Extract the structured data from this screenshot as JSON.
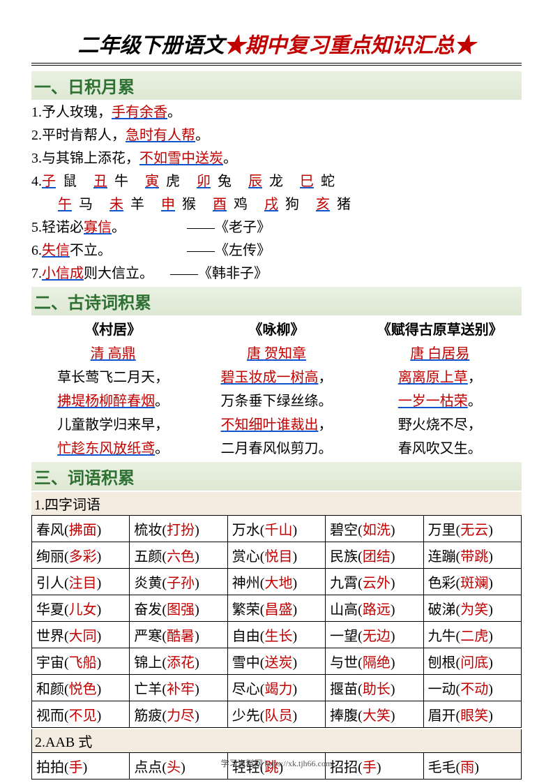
{
  "title": {
    "part1": "二年级下册语文",
    "star": "★",
    "part2": "期中复习重点知识汇总"
  },
  "section1": {
    "header": "一、日积月累",
    "items": {
      "1": {
        "pre": "1.予人玫瑰，",
        "hl": "手有余香",
        "post": "。"
      },
      "2": {
        "pre": "2.平时肯帮人，",
        "hl": "急时有人帮",
        "post": "。"
      },
      "3": {
        "pre": "3.与其锦上添花，",
        "hl": "不如雪中送炭",
        "post": "。"
      },
      "4": {
        "pre": "4.",
        "row1": [
          {
            "k": "子",
            "v": "鼠"
          },
          {
            "k": "丑",
            "v": "牛"
          },
          {
            "k": "寅",
            "v": "虎"
          },
          {
            "k": "卯",
            "v": "兔"
          },
          {
            "k": "辰",
            "v": "龙"
          },
          {
            "k": "巳",
            "v": "蛇"
          }
        ],
        "row2": [
          {
            "k": "午",
            "v": "马"
          },
          {
            "k": "未",
            "v": "羊"
          },
          {
            "k": "申",
            "v": "猴"
          },
          {
            "k": "酉",
            "v": "鸡"
          },
          {
            "k": "戌",
            "v": "狗"
          },
          {
            "k": "亥",
            "v": "猪"
          }
        ]
      },
      "5": {
        "pre": "5.轻诺必",
        "hl": "寡信",
        "post": "。",
        "src": "——《老子》"
      },
      "6": {
        "pre": "6.",
        "hl": "失信",
        "post": "不立。",
        "src": "——《左传》"
      },
      "7": {
        "pre": "7.",
        "hl": "小信成",
        "post": "则大信立。",
        "src": "——《韩非子》"
      }
    }
  },
  "section2": {
    "header": "二、古诗词积累",
    "poems": [
      {
        "title": "《村居》",
        "author": "清 高鼎",
        "lines": [
          {
            "t": "草长莺飞二月天，",
            "r": false
          },
          {
            "t": "拂堤杨柳醉春烟",
            "r": true,
            "p": "。"
          },
          {
            "t": "儿童散学归来早，",
            "r": false
          },
          {
            "t": "忙趁东风放纸鸢",
            "r": true,
            "p": "。"
          }
        ]
      },
      {
        "title": "《咏柳》",
        "author": "唐 贺知章",
        "lines": [
          {
            "t": "碧玉妆成一树高",
            "r": true,
            "p": "，"
          },
          {
            "t": "万条垂下绿丝绦。",
            "r": false
          },
          {
            "t": "不知细叶谁裁出",
            "r": true,
            "p": "，"
          },
          {
            "t": "二月春风似剪刀。",
            "r": false
          }
        ]
      },
      {
        "title": "《赋得古原草送别》",
        "author": "唐 白居易",
        "lines": [
          {
            "t": "离离原上草",
            "r": true,
            "p": "，"
          },
          {
            "t": "一岁一枯荣",
            "r": true,
            "p": "。"
          },
          {
            "t": "野火烧不尽，",
            "r": false
          },
          {
            "t": "春风吹又生。",
            "r": false
          }
        ]
      }
    ]
  },
  "section3": {
    "header": "三、词语积累",
    "sub1": "1.四字词语",
    "table1": [
      [
        {
          "a": "春风(",
          "b": "拂面",
          "c": ")"
        },
        {
          "a": "梳妆(",
          "b": "打扮",
          "c": ")"
        },
        {
          "a": "万水(",
          "b": "千山",
          "c": ")"
        },
        {
          "a": "碧空(",
          "b": "如洗",
          "c": ")"
        },
        {
          "a": "万里(",
          "b": "无云",
          "c": ")"
        }
      ],
      [
        {
          "a": "绚丽(",
          "b": "多彩",
          "c": ")"
        },
        {
          "a": "五颜(",
          "b": "六色",
          "c": ")"
        },
        {
          "a": "赏心(",
          "b": "悦目",
          "c": ")"
        },
        {
          "a": "民族(",
          "b": "团结",
          "c": ")"
        },
        {
          "a": "连蹦(",
          "b": "带跳",
          "c": ")"
        }
      ],
      [
        {
          "a": "引人(",
          "b": "注目",
          "c": ")"
        },
        {
          "a": "炎黄(",
          "b": "子孙",
          "c": ")"
        },
        {
          "a": "神州(",
          "b": "大地",
          "c": ")"
        },
        {
          "a": "九霄(",
          "b": "云外",
          "c": ")"
        },
        {
          "a": "色彩(",
          "b": "斑斓",
          "c": ")"
        }
      ],
      [
        {
          "a": "华夏(",
          "b": "儿女",
          "c": ")"
        },
        {
          "a": "奋发(",
          "b": "图强",
          "c": ")"
        },
        {
          "a": "繁荣(",
          "b": "昌盛",
          "c": ")"
        },
        {
          "a": "山高(",
          "b": "路远",
          "c": ")"
        },
        {
          "a": "破涕(",
          "b": "为笑",
          "c": ")"
        }
      ],
      [
        {
          "a": "世界(",
          "b": "大同",
          "c": ")"
        },
        {
          "a": "严寒(",
          "b": "酷暑",
          "c": ")"
        },
        {
          "a": "自由(",
          "b": "生长",
          "c": ")"
        },
        {
          "a": "一望(",
          "b": "无边",
          "c": ")"
        },
        {
          "a": "九牛(",
          "b": "二虎",
          "c": ")"
        }
      ],
      [
        {
          "a": "宇宙(",
          "b": "飞船",
          "c": ")"
        },
        {
          "a": "锦上(",
          "b": "添花",
          "c": ")"
        },
        {
          "a": "雪中(",
          "b": "送炭",
          "c": ")"
        },
        {
          "a": "与世(",
          "b": "隔绝",
          "c": ")"
        },
        {
          "a": "刨根(",
          "b": "问底",
          "c": ")"
        }
      ],
      [
        {
          "a": "和颜(",
          "b": "悦色",
          "c": ")"
        },
        {
          "a": "亡羊(",
          "b": "补牢",
          "c": ")"
        },
        {
          "a": "尽心(",
          "b": "竭力",
          "c": ")"
        },
        {
          "a": "揠苗(",
          "b": "助长",
          "c": ")"
        },
        {
          "a": "一动(",
          "b": "不动",
          "c": ")"
        }
      ],
      [
        {
          "a": "视而(",
          "b": "不见",
          "c": ")"
        },
        {
          "a": "筋疲(",
          "b": "力尽",
          "c": ")"
        },
        {
          "a": "少先(",
          "b": "队员",
          "c": ")"
        },
        {
          "a": "捧腹(",
          "b": "大笑",
          "c": ")"
        },
        {
          "a": "眉开(",
          "b": "眼笑",
          "c": ")"
        }
      ]
    ],
    "sub2": "2.AAB 式",
    "table2": [
      [
        {
          "a": "拍拍(",
          "b": "手",
          "c": ")"
        },
        {
          "a": "点点(",
          "b": "头",
          "c": ")"
        },
        {
          "a": "轻轻(",
          "b": "跳",
          "c": ")"
        },
        {
          "a": "招招(",
          "b": "手",
          "c": ")"
        },
        {
          "a": "毛毛(",
          "b": "雨",
          "c": ")"
        }
      ]
    ]
  },
  "footer": "学习资料网 https://xk.tjh66.com"
}
